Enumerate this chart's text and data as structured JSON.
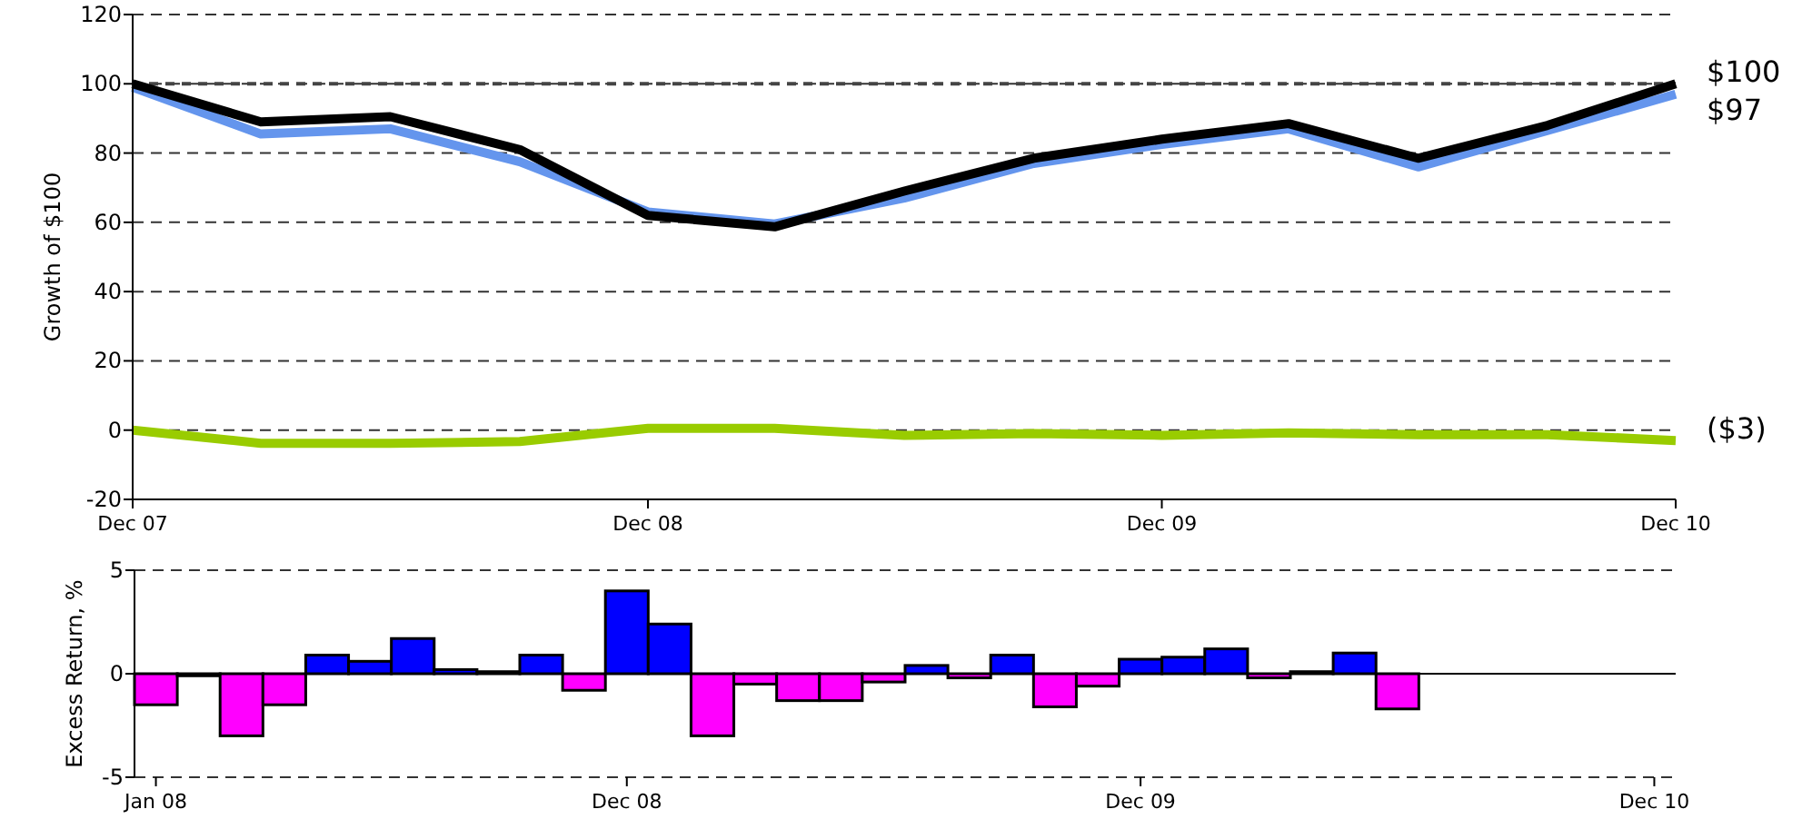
{
  "chart_data": [
    {
      "type": "line",
      "ylabel": "Growth of $100",
      "x": [
        "2007-12",
        "2008-03",
        "2008-06",
        "2008-09",
        "2008-12",
        "2009-03",
        "2009-06",
        "2009-09",
        "2009-12",
        "2010-03",
        "2010-06",
        "2010-09",
        "2010-12"
      ],
      "xlim": [
        "2007-12",
        "2010-12"
      ],
      "xticks": [
        {
          "value": "2007-12",
          "label": "Dec 07"
        },
        {
          "value": "2008-12",
          "label": "Dec 08"
        },
        {
          "value": "2009-12",
          "label": "Dec 09"
        },
        {
          "value": "2010-12",
          "label": "Dec 10"
        }
      ],
      "ylim": [
        -20,
        120
      ],
      "yticks": [
        -20,
        0,
        20,
        40,
        60,
        80,
        100,
        120
      ],
      "grid": "y",
      "line_style": "solid",
      "ref_lines": [
        {
          "axis": "y",
          "value": 100,
          "color": "#444444",
          "line_style": "dashed"
        }
      ],
      "series": [
        {
          "color": "#6495ed",
          "values": [
            99,
            85.5,
            87,
            77.5,
            63,
            59.5,
            67,
            77,
            82.5,
            87,
            76,
            86.5,
            97
          ],
          "value_labels": [
            null,
            null,
            null,
            null,
            null,
            null,
            null,
            null,
            null,
            null,
            null,
            null,
            "$97"
          ]
        },
        {
          "color": "#000000",
          "values": [
            100,
            89,
            90.5,
            81,
            62,
            58.7,
            69,
            78.5,
            84,
            88.5,
            78.5,
            88,
            100
          ],
          "value_labels": [
            null,
            null,
            null,
            null,
            null,
            null,
            null,
            null,
            null,
            null,
            null,
            null,
            "$100"
          ]
        },
        {
          "color": "#99cc00",
          "values": [
            0,
            -3.8,
            -3.8,
            -3.3,
            0.5,
            0.5,
            -1.5,
            -1,
            -1.5,
            -0.8,
            -1.3,
            -1.3,
            -3
          ],
          "value_labels": [
            null,
            null,
            null,
            null,
            null,
            null,
            null,
            null,
            null,
            null,
            null,
            null,
            "($3)"
          ]
        }
      ]
    },
    {
      "type": "bar",
      "ylabel": "Excess Return, %",
      "categories": [
        "Jan 08",
        null,
        null,
        null,
        null,
        null,
        null,
        null,
        null,
        null,
        null,
        "Dec 08",
        null,
        null,
        null,
        null,
        null,
        null,
        null,
        null,
        null,
        null,
        null,
        "Dec 09",
        null,
        null,
        null,
        null,
        null,
        null,
        null,
        null,
        null,
        null,
        null,
        "Dec 10"
      ],
      "ylim": [
        -5,
        5
      ],
      "yticks": [
        -5,
        0,
        5
      ],
      "grid": "y",
      "values": [
        -1.5,
        -0.1,
        -3,
        -1.5,
        0.9,
        0.6,
        1.7,
        0.2,
        0.1,
        0.9,
        -0.8,
        4,
        2.4,
        -3,
        -0.5,
        -1.3,
        -1.3,
        -0.4,
        0.4,
        -0.2,
        0.9,
        -1.6,
        -0.6,
        0.7,
        0.8,
        1.2,
        -0.2,
        0.1,
        1,
        -1.7,
        0,
        0,
        0,
        0,
        0,
        0
      ],
      "colors": [
        "#ff00ff",
        "#ff00ff",
        "#ff00ff",
        "#ff00ff",
        "#0000ff",
        "#0000ff",
        "#0000ff",
        "#0000ff",
        "#0000ff",
        "#0000ff",
        "#ff00ff",
        "#0000ff",
        "#0000ff",
        "#ff00ff",
        "#ff00ff",
        "#ff00ff",
        "#ff00ff",
        "#ff00ff",
        "#0000ff",
        "#ff00ff",
        "#0000ff",
        "#ff00ff",
        "#ff00ff",
        "#0000ff",
        "#0000ff",
        "#0000ff",
        "#ff00ff",
        "#0000ff",
        "#0000ff",
        "#ff00ff",
        "#0000ff",
        "#0000ff",
        "#0000ff",
        "#0000ff",
        "#0000ff",
        "#0000ff"
      ]
    }
  ]
}
